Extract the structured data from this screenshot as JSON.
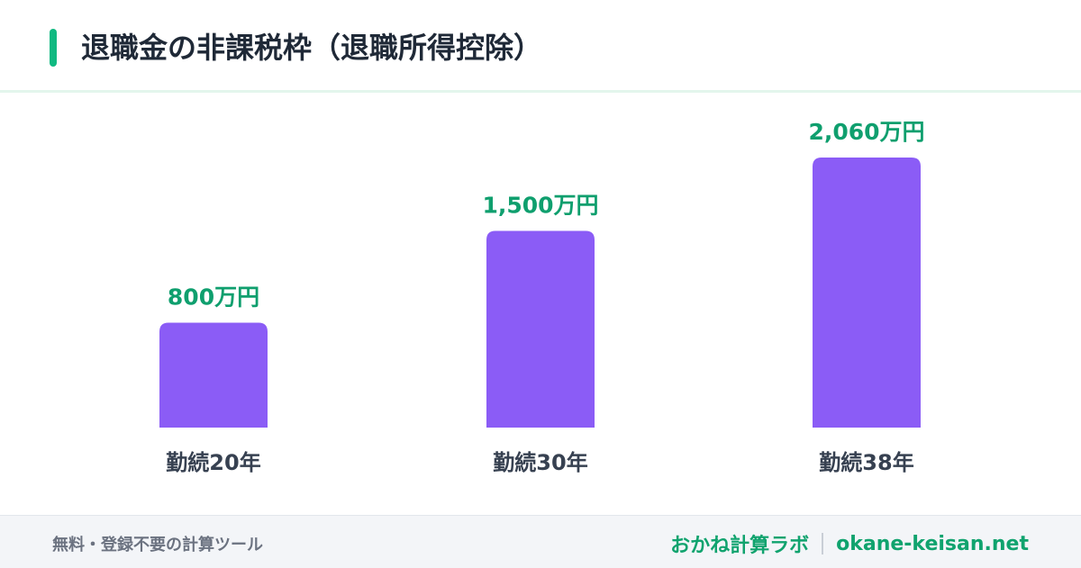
{
  "page": {
    "title": "退職金の非課税枠（退職所得控除）",
    "accent_color": "#10b981"
  },
  "chart_data": {
    "type": "bar",
    "title": "退職金の非課税枠（退職所得控除）",
    "categories": [
      "勤続20年",
      "勤続30年",
      "勤続38年"
    ],
    "values": [
      800,
      1500,
      2060
    ],
    "value_labels": [
      "800万円",
      "1,500万円",
      "2,060万円"
    ],
    "unit": "万円",
    "bar_color": "#8b5cf6",
    "label_color": "#0f9f6e",
    "ylim": [
      0,
      2060
    ],
    "grid": false,
    "legend": "none"
  },
  "footer": {
    "tagline": "無料・登録不要の計算ツール",
    "brand_name": "おかね計算ラボ",
    "domain": "okane-keisan.net"
  }
}
